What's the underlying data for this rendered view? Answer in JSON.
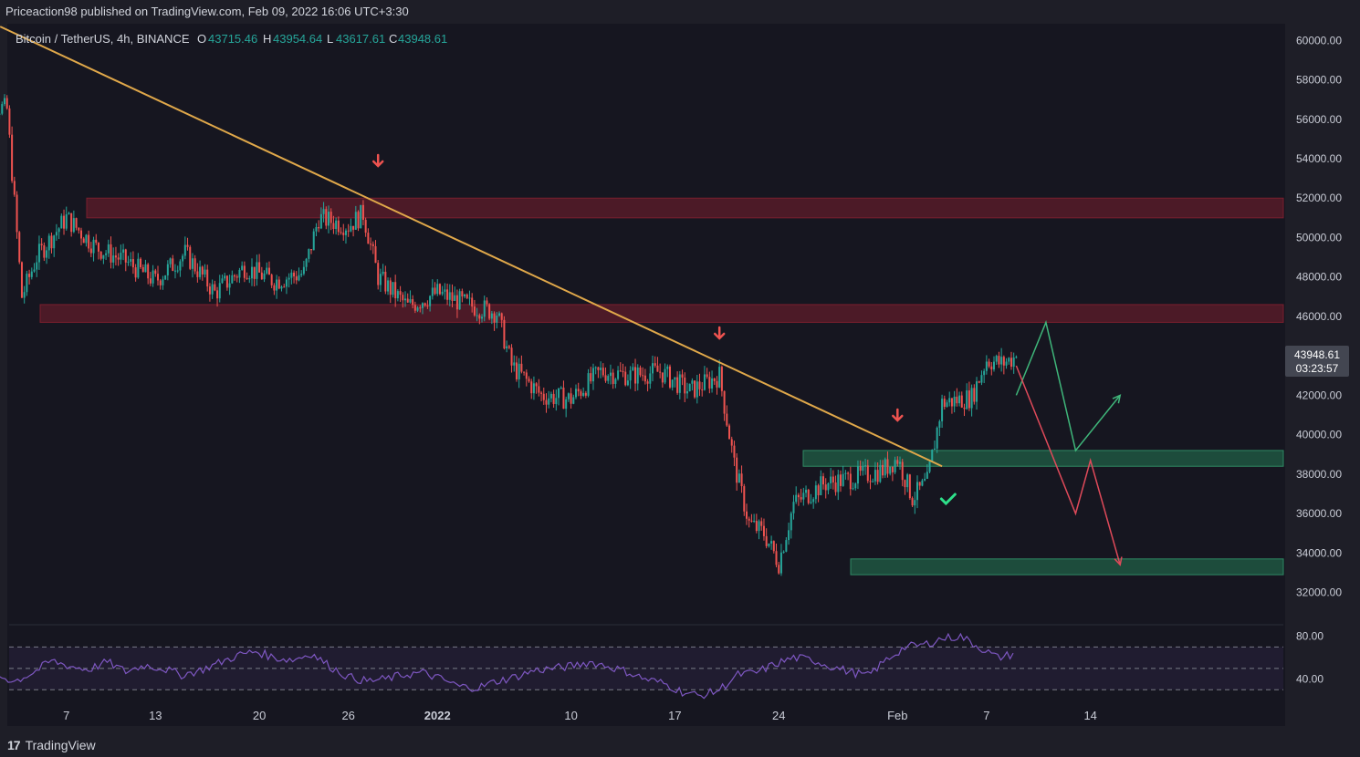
{
  "header": {
    "published_line": "Priceaction98 published on TradingView.com, Feb 09, 2022 16:06 UTC+3:30"
  },
  "legend": {
    "symbol": "Bitcoin / TetherUS, 4h, BINANCE",
    "o_label": "O",
    "o_value": "43715.46",
    "h_label": "H",
    "h_value": "43954.64",
    "l_label": "L",
    "l_value": "43617.61",
    "c_label": "C",
    "c_value": "43948.61"
  },
  "price_tag": {
    "price": "43948.61",
    "countdown": "03:23:57"
  },
  "footer": {
    "brand": "TradingView",
    "mark": "17"
  },
  "colors": {
    "background": "#161620",
    "up": "#26a69a",
    "down": "#ef5350",
    "trendline": "#e0a84a",
    "resistance_zone": "#7a1f2e",
    "support_zone": "#1f5a44",
    "projection_up": "#3fb67a",
    "projection_down": "#e04a5a",
    "rsi": "#7e57c2"
  },
  "chart_data": [
    {
      "type": "candlestick",
      "symbol": "Bitcoin / TetherUS",
      "interval": "4h",
      "exchange": "BINANCE",
      "y_axis_ticks": [
        "60000.00",
        "58000.00",
        "56000.00",
        "54000.00",
        "52000.00",
        "50000.00",
        "48000.00",
        "46000.00",
        "42000.00",
        "40000.00",
        "38000.00",
        "36000.00",
        "34000.00",
        "32000.00"
      ],
      "ylim": [
        30500,
        60800
      ],
      "x_axis_ticks": [
        "7",
        "13",
        "20",
        "26",
        "2022",
        "10",
        "17",
        "24",
        "Feb",
        "7",
        "14"
      ],
      "path": [
        [
          "Dec 1",
          57000
        ],
        [
          "Dec 3",
          56500
        ],
        [
          "Dec 4",
          47000
        ],
        [
          "Dec 5",
          49000
        ],
        [
          "Dec 7",
          51000
        ],
        [
          "Dec 9",
          49500
        ],
        [
          "Dec 11",
          48800
        ],
        [
          "Dec 13",
          47800
        ],
        [
          "Dec 15",
          49200
        ],
        [
          "Dec 17",
          47200
        ],
        [
          "Dec 19",
          48500
        ],
        [
          "Dec 21",
          47800
        ],
        [
          "Dec 23",
          48200
        ],
        [
          "Dec 24",
          51000
        ],
        [
          "Dec 26",
          50600
        ],
        [
          "Dec 27",
          51200
        ],
        [
          "Dec 28",
          48000
        ],
        [
          "Dec 30",
          46500
        ],
        [
          "Jan 1",
          47200
        ],
        [
          "Jan 3",
          46600
        ],
        [
          "Jan 4",
          46400
        ],
        [
          "Jan 5",
          46200
        ],
        [
          "Jan 6",
          43500
        ],
        [
          "Jan 8",
          42000
        ],
        [
          "Jan 10",
          41800
        ],
        [
          "Jan 12",
          43200
        ],
        [
          "Jan 14",
          43000
        ],
        [
          "Jan 16",
          43200
        ],
        [
          "Jan 18",
          42200
        ],
        [
          "Jan 20",
          43000
        ],
        [
          "Jan 21",
          38500
        ],
        [
          "Jan 22",
          35500
        ],
        [
          "Jan 23",
          35000
        ],
        [
          "Jan 24",
          33500
        ],
        [
          "Jan 25",
          36500
        ],
        [
          "Jan 27",
          37500
        ],
        [
          "Jan 29",
          37800
        ],
        [
          "Jan 31",
          38200
        ],
        [
          "Feb 1",
          38800
        ],
        [
          "Feb 2",
          36800
        ],
        [
          "Feb 3",
          37600
        ],
        [
          "Feb 4",
          41600
        ],
        [
          "Feb 6",
          41900
        ],
        [
          "Feb 7",
          43800
        ],
        [
          "Feb 8",
          43600
        ],
        [
          "Feb 9",
          43948.61
        ]
      ],
      "last_price": 43948.61,
      "resistance_zones": [
        [
          51000,
          52000
        ],
        [
          45700,
          46600
        ]
      ],
      "support_zones": [
        [
          38400,
          39200
        ],
        [
          32900,
          33700
        ]
      ],
      "trendline": {
        "from": [
          "Dec 1",
          60700
        ],
        "to": [
          "Feb 4",
          38400
        ]
      },
      "sell_signals": [
        "Dec 28",
        "Jan 20",
        "Feb 1"
      ],
      "buy_signals": [
        "Feb 5"
      ],
      "projection_bullish": [
        [
          "Feb 9",
          42000
        ],
        [
          "Feb 11",
          45700
        ],
        [
          "Feb 13",
          39200
        ],
        [
          "Feb 16",
          42000
        ]
      ],
      "projection_bearish": [
        [
          "Feb 9",
          43500
        ],
        [
          "Feb 13",
          36000
        ],
        [
          "Feb 14",
          38700
        ],
        [
          "Feb 16",
          33400
        ]
      ]
    },
    {
      "type": "line",
      "indicator": "RSI",
      "y_axis_ticks": [
        "80.00",
        "40.00"
      ],
      "ylim": [
        20,
        90
      ],
      "levels": [
        70,
        50,
        30
      ],
      "values": [
        50,
        44,
        38,
        46,
        57,
        52,
        49,
        56,
        47,
        53,
        50,
        44,
        48,
        55,
        62,
        66,
        60,
        58,
        64,
        52,
        42,
        38,
        40,
        44,
        46,
        40,
        33,
        32,
        38,
        42,
        48,
        50,
        52,
        56,
        52,
        47,
        40,
        36,
        28,
        24,
        30,
        44,
        46,
        54,
        60,
        58,
        52,
        47,
        43,
        58,
        70,
        72,
        78,
        80,
        70,
        60,
        64
      ]
    }
  ]
}
